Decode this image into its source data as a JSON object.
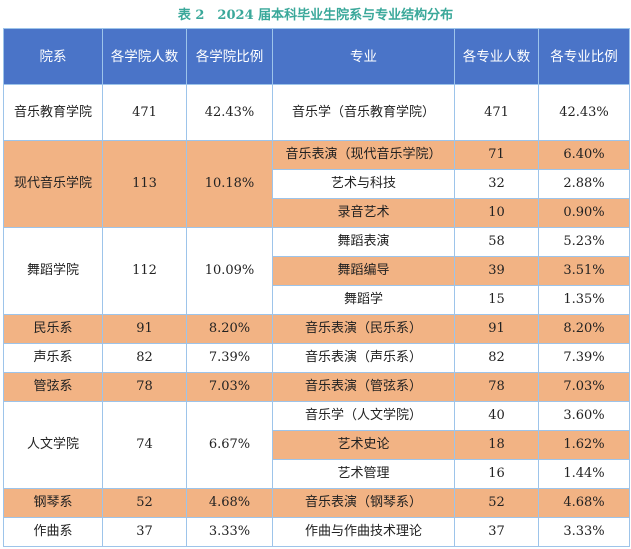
{
  "title": "表 2　2024 届本科毕业生院系与专业结构分布",
  "headers": [
    "院系",
    "各学院人数",
    "各学院比例",
    "专业",
    "各专业人数",
    "各专业比例"
  ],
  "colors": {
    "header": "#4a74c8",
    "highlight": "#f2b384",
    "border": "#9dc4ea",
    "title": "#3aa89a"
  },
  "rows": [
    {
      "dept": "音乐教育学院",
      "dept_count": "471",
      "dept_pct": "42.43%",
      "majors": [
        {
          "name": "音乐学（音乐教育学院）",
          "count": "471",
          "pct": "42.43%"
        }
      ]
    },
    {
      "dept": "现代音乐学院",
      "dept_count": "113",
      "dept_pct": "10.18%",
      "majors": [
        {
          "name": "音乐表演（现代音乐学院）",
          "count": "71",
          "pct": "6.40%"
        },
        {
          "name": "艺术与科技",
          "count": "32",
          "pct": "2.88%"
        },
        {
          "name": "录音艺术",
          "count": "10",
          "pct": "0.90%"
        }
      ]
    },
    {
      "dept": "舞蹈学院",
      "dept_count": "112",
      "dept_pct": "10.09%",
      "majors": [
        {
          "name": "舞蹈表演",
          "count": "58",
          "pct": "5.23%"
        },
        {
          "name": "舞蹈编导",
          "count": "39",
          "pct": "3.51%"
        },
        {
          "name": "舞蹈学",
          "count": "15",
          "pct": "1.35%"
        }
      ]
    },
    {
      "dept": "民乐系",
      "dept_count": "91",
      "dept_pct": "8.20%",
      "majors": [
        {
          "name": "音乐表演（民乐系）",
          "count": "91",
          "pct": "8.20%"
        }
      ]
    },
    {
      "dept": "声乐系",
      "dept_count": "82",
      "dept_pct": "7.39%",
      "majors": [
        {
          "name": "音乐表演（声乐系）",
          "count": "82",
          "pct": "7.39%"
        }
      ]
    },
    {
      "dept": "管弦系",
      "dept_count": "78",
      "dept_pct": "7.03%",
      "majors": [
        {
          "name": "音乐表演（管弦系）",
          "count": "78",
          "pct": "7.03%"
        }
      ]
    },
    {
      "dept": "人文学院",
      "dept_count": "74",
      "dept_pct": "6.67%",
      "majors": [
        {
          "name": "音乐学（人文学院）",
          "count": "40",
          "pct": "3.60%"
        },
        {
          "name": "艺术史论",
          "count": "18",
          "pct": "1.62%"
        },
        {
          "name": "艺术管理",
          "count": "16",
          "pct": "1.44%"
        }
      ]
    },
    {
      "dept": "钢琴系",
      "dept_count": "52",
      "dept_pct": "4.68%",
      "majors": [
        {
          "name": "音乐表演（钢琴系）",
          "count": "52",
          "pct": "4.68%"
        }
      ]
    },
    {
      "dept": "作曲系",
      "dept_count": "37",
      "dept_pct": "3.33%",
      "majors": [
        {
          "name": "作曲与作曲技术理论",
          "count": "37",
          "pct": "3.33%"
        }
      ]
    }
  ]
}
